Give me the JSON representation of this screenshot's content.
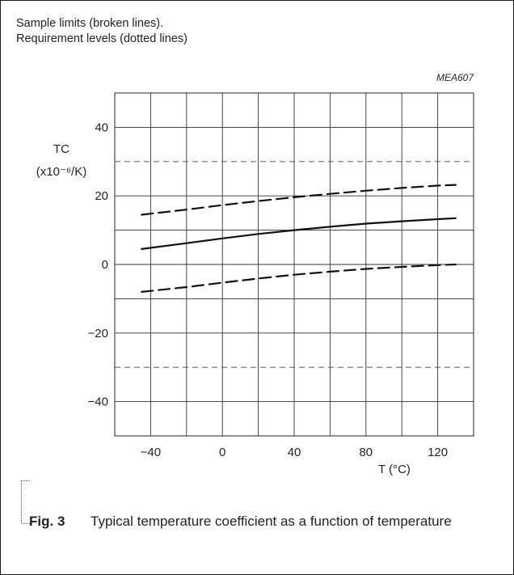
{
  "notes": [
    "Sample limits (broken lines).",
    "Requirement levels (dotted lines)"
  ],
  "chart_data": {
    "type": "line",
    "code": "MEA607",
    "ylabel": "TC",
    "ylabel_unit": "(x10⁻⁶/K)",
    "xlabel": "T (°C)",
    "xlim": [
      -60,
      140
    ],
    "ylim": [
      -50,
      50
    ],
    "xticks": [
      -40,
      0,
      40,
      80,
      120
    ],
    "xtick_labels": [
      "−40",
      "0",
      "40",
      "80",
      "120"
    ],
    "yticks": [
      -40,
      -20,
      0,
      20,
      40
    ],
    "ytick_labels": [
      "−40",
      "−20",
      "0",
      "20",
      "40"
    ],
    "grid": true,
    "x_grid_step": 20,
    "y_grid_step": 10,
    "requirement_levels": [
      30,
      -30
    ],
    "series": [
      {
        "style": "dashed",
        "x": [
          -45,
          -20,
          0,
          20,
          40,
          60,
          80,
          100,
          120,
          130
        ],
        "values": [
          14.5,
          16.0,
          17.3,
          18.5,
          19.6,
          20.6,
          21.5,
          22.3,
          23.0,
          23.2
        ]
      },
      {
        "style": "solid",
        "x": [
          -45,
          -20,
          0,
          20,
          40,
          60,
          80,
          100,
          120,
          130
        ],
        "values": [
          4.5,
          6.2,
          7.6,
          8.9,
          10.0,
          11.0,
          11.9,
          12.6,
          13.2,
          13.5
        ]
      },
      {
        "style": "dashed",
        "x": [
          -45,
          -20,
          0,
          20,
          40,
          60,
          80,
          100,
          120,
          130
        ],
        "values": [
          -8.0,
          -6.6,
          -5.3,
          -4.1,
          -3.0,
          -2.1,
          -1.3,
          -0.7,
          -0.2,
          0.0
        ]
      }
    ]
  },
  "caption": {
    "fig_label": "Fig. 3",
    "text": "Typical temperature coefficient as a function of temperature"
  }
}
